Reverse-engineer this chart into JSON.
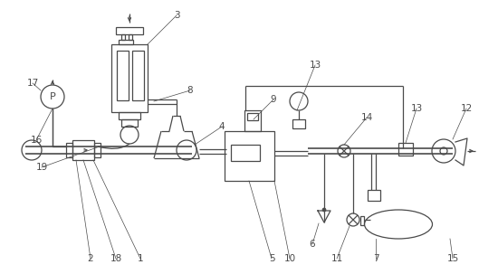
{
  "bg_color": "#ffffff",
  "line_color": "#4a4a4a",
  "fig_width": 5.5,
  "fig_height": 3.03,
  "dpi": 100,
  "lw": 0.9,
  "lw2": 1.2,
  "font_size": 7.5
}
